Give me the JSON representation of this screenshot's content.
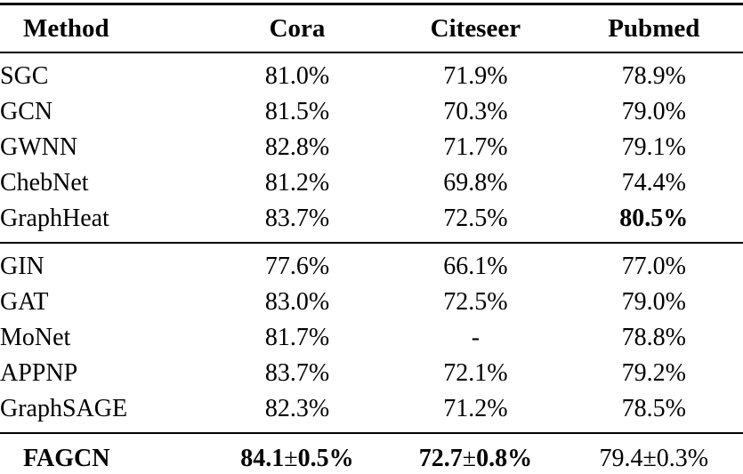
{
  "page": {
    "background_color": "#ffffff",
    "text_color": "#000000",
    "rule_color": "#000000"
  },
  "table": {
    "columns": [
      {
        "label": "Method",
        "align": "left"
      },
      {
        "label": "Cora",
        "align": "center"
      },
      {
        "label": "Citeseer",
        "align": "center"
      },
      {
        "label": "Pubmed",
        "align": "center"
      }
    ],
    "groups": [
      {
        "rows": [
          {
            "method": "SGC",
            "method_bold": false,
            "values": [
              "81.0%",
              "71.9%",
              "78.9%"
            ],
            "bold": [
              false,
              false,
              false
            ]
          },
          {
            "method": "GCN",
            "method_bold": false,
            "values": [
              "81.5%",
              "70.3%",
              "79.0%"
            ],
            "bold": [
              false,
              false,
              false
            ]
          },
          {
            "method": "GWNN",
            "method_bold": false,
            "values": [
              "82.8%",
              "71.7%",
              "79.1%"
            ],
            "bold": [
              false,
              false,
              false
            ]
          },
          {
            "method": "ChebNet",
            "method_bold": false,
            "values": [
              "81.2%",
              "69.8%",
              "74.4%"
            ],
            "bold": [
              false,
              false,
              false
            ]
          },
          {
            "method": "GraphHeat",
            "method_bold": false,
            "values": [
              "83.7%",
              "72.5%",
              "80.5%"
            ],
            "bold": [
              false,
              false,
              true
            ]
          }
        ]
      },
      {
        "rows": [
          {
            "method": "GIN",
            "method_bold": false,
            "values": [
              "77.6%",
              "66.1%",
              "77.0%"
            ],
            "bold": [
              false,
              false,
              false
            ]
          },
          {
            "method": "GAT",
            "method_bold": false,
            "values": [
              "83.0%",
              "72.5%",
              "79.0%"
            ],
            "bold": [
              false,
              false,
              false
            ]
          },
          {
            "method": "MoNet",
            "method_bold": false,
            "values": [
              "81.7%",
              "-",
              "78.8%"
            ],
            "bold": [
              false,
              false,
              false
            ]
          },
          {
            "method": "APPNP",
            "method_bold": false,
            "values": [
              "83.7%",
              "72.1%",
              "79.2%"
            ],
            "bold": [
              false,
              false,
              false
            ]
          },
          {
            "method": "GraphSAGE",
            "method_bold": false,
            "values": [
              "82.3%",
              "71.2%",
              "78.5%"
            ],
            "bold": [
              false,
              false,
              false
            ]
          }
        ]
      }
    ],
    "footer": {
      "method": "FAGCN",
      "method_bold": true,
      "values": [
        "84.1±0.5%",
        "72.7±0.8%",
        "79.4±0.3%"
      ],
      "bold": [
        true,
        true,
        false
      ]
    }
  }
}
